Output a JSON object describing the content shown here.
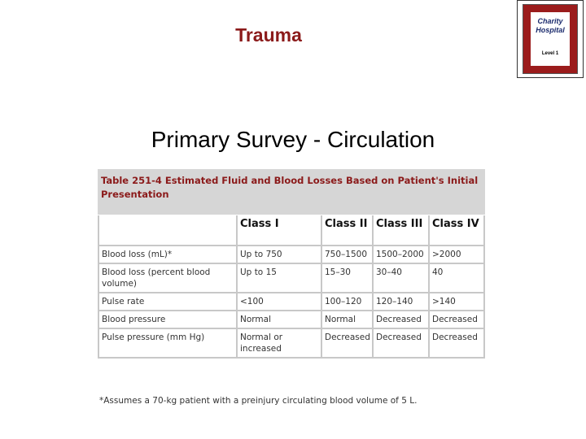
{
  "header": {
    "title": "Trauma",
    "logo": {
      "lines": [
        "Charity",
        "Hospital",
        "Level 1"
      ]
    }
  },
  "slide_title": "Primary Survey - Circulation",
  "table": {
    "caption": "Table 251-4 Estimated Fluid and Blood Losses Based on Patient's Initial Presentation",
    "columns": [
      "Class I",
      "Class II",
      "Class III",
      "Class IV"
    ],
    "rows": [
      [
        "Blood loss (mL)*",
        "Up to 750",
        "750–1500",
        "1500–2000",
        ">2000"
      ],
      [
        "Blood loss (percent blood volume)",
        "Up to 15",
        "15–30",
        "30–40",
        "40"
      ],
      [
        "Pulse rate",
        "<100",
        "100–120",
        "120–140",
        ">140"
      ],
      [
        "Blood pressure",
        "Normal",
        "Normal",
        "Decreased",
        "Decreased"
      ],
      [
        "Pulse pressure (mm Hg)",
        "Normal or increased",
        "Decreased",
        "Decreased",
        "Decreased"
      ]
    ],
    "footnote": "*Assumes a 70-kg patient with a preinjury circulating blood volume of 5 L."
  }
}
